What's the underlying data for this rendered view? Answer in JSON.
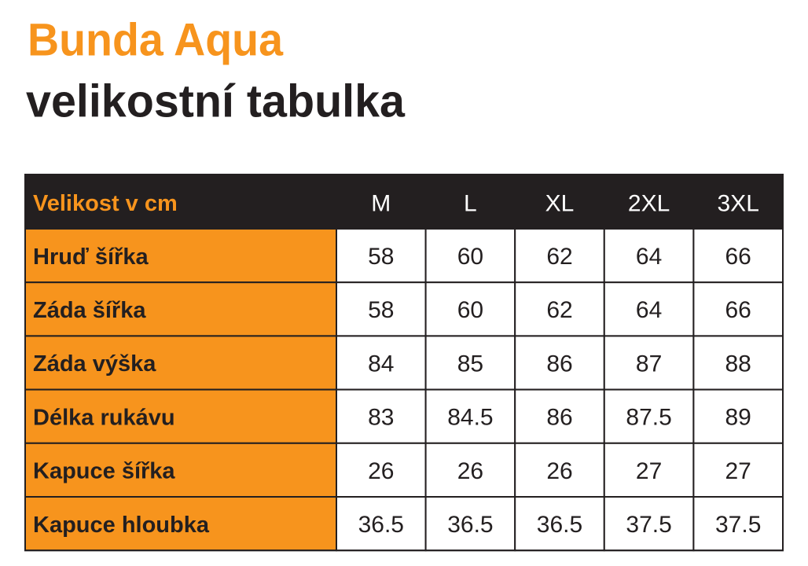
{
  "header": {
    "title": "Bunda Aqua",
    "subtitle": "velikostní tabulka"
  },
  "table": {
    "columns": [
      "Velikost v cm",
      "M",
      "L",
      "XL",
      "2XL",
      "3XL"
    ],
    "rows": [
      [
        "Hruď šířka",
        "58",
        "60",
        "62",
        "64",
        "66"
      ],
      [
        "Záda šířka",
        "58",
        "60",
        "62",
        "64",
        "66"
      ],
      [
        "Záda výška",
        "84",
        "85",
        "86",
        "87",
        "88"
      ],
      [
        "Délka rukávu",
        "83",
        "84.5",
        "86",
        "87.5",
        "89"
      ],
      [
        "Kapuce šířka",
        "26",
        "26",
        "26",
        "27",
        "27"
      ],
      [
        "Kapuce hloubka",
        "36.5",
        "36.5",
        "36.5",
        "37.5",
        "37.5"
      ]
    ]
  }
}
